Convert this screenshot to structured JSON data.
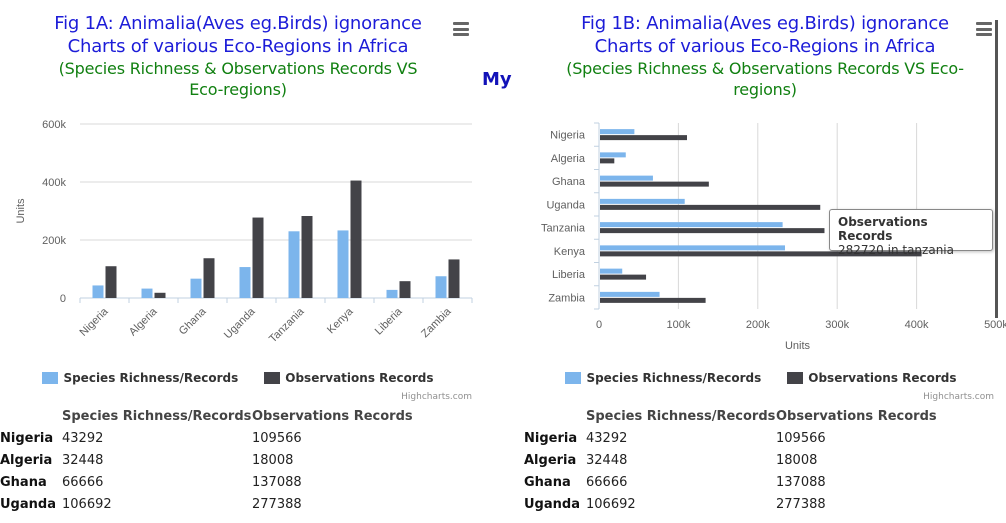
{
  "center_text": "My",
  "panels": [
    {
      "title": "Fig 1A: Animalia(Aves eg.Birds) ignorance Charts of various Eco-Regions in Africa",
      "subtitle": "(Species Richness & Observations Records VS Eco-regions)",
      "credits": "Highcharts.com",
      "table": {
        "headers": [
          "Species Richness/Records",
          "Observations Records"
        ],
        "rows": [
          {
            "label": "Nigeria",
            "v1": "43292",
            "v2": "109566"
          },
          {
            "label": "Algeria",
            "v1": "32448",
            "v2": "18008"
          },
          {
            "label": "Ghana",
            "v1": "66666",
            "v2": "137088"
          },
          {
            "label": "Uganda",
            "v1": "106692",
            "v2": "277388"
          }
        ]
      }
    },
    {
      "title": "Fig 1B: Animalia(Aves eg.Birds) ignorance Charts of various Eco-Regions in Africa",
      "subtitle": "(Species Richness & Observations Records VS Eco-regions)",
      "credits": "Highcharts.com",
      "tooltip": {
        "series": "Observations Records",
        "text": "282720 in tanzania"
      },
      "table": {
        "headers": [
          "Species Richness/Records",
          "Observations Records"
        ],
        "rows": [
          {
            "label": "Nigeria",
            "v1": "43292",
            "v2": "109566"
          },
          {
            "label": "Algeria",
            "v1": "32448",
            "v2": "18008"
          },
          {
            "label": "Ghana",
            "v1": "66666",
            "v2": "137088"
          },
          {
            "label": "Uganda",
            "v1": "106692",
            "v2": "277388"
          }
        ]
      }
    }
  ],
  "chart_data": [
    {
      "type": "bar",
      "orientation": "vertical",
      "categories": [
        "Nigeria",
        "Algeria",
        "Ghana",
        "Uganda",
        "Tanzania",
        "Kenya",
        "Liberia",
        "Zambia"
      ],
      "series": [
        {
          "name": "Species Richness/Records",
          "color": "#7cb5ec",
          "values": [
            43292,
            32448,
            66666,
            106692,
            230000,
            233000,
            28000,
            75000
          ]
        },
        {
          "name": "Observations Records",
          "color": "#434348",
          "values": [
            109566,
            18008,
            137088,
            277388,
            282720,
            405000,
            58000,
            133000
          ]
        }
      ],
      "ylabel": "Units",
      "ylim": [
        0,
        600000
      ],
      "yticks": [
        0,
        200000,
        400000,
        600000
      ],
      "ytick_labels": [
        "0",
        "200k",
        "400k",
        "600k"
      ],
      "grid": true,
      "legend_position": "bottom"
    },
    {
      "type": "bar",
      "orientation": "horizontal",
      "categories": [
        "Nigeria",
        "Algeria",
        "Ghana",
        "Uganda",
        "Tanzania",
        "Kenya",
        "Liberia",
        "Zambia"
      ],
      "series": [
        {
          "name": "Species Richness/Records",
          "color": "#7cb5ec",
          "values": [
            43292,
            32448,
            66666,
            106692,
            230000,
            233000,
            28000,
            75000
          ]
        },
        {
          "name": "Observations Records",
          "color": "#434348",
          "values": [
            109566,
            18008,
            137088,
            277388,
            282720,
            405000,
            58000,
            133000
          ]
        }
      ],
      "xlabel": "Units",
      "xlim": [
        0,
        500000
      ],
      "xticks": [
        0,
        100000,
        200000,
        300000,
        400000,
        500000
      ],
      "xtick_labels": [
        "0",
        "100k",
        "200k",
        "300k",
        "400k",
        "500k"
      ],
      "grid": true,
      "legend_position": "bottom"
    }
  ]
}
